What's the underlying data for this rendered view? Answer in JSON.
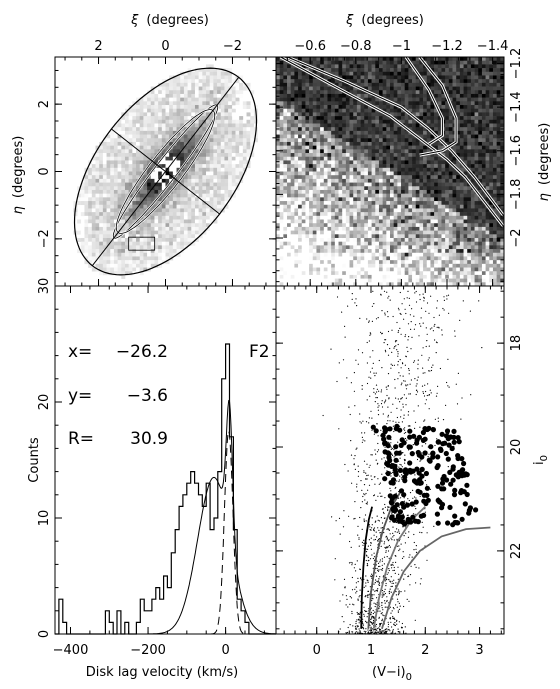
{
  "chart_data": [
    {
      "type": "scatter",
      "panel": "sky-map",
      "x_label_prefix": "ξ",
      "x_label_suffix": "(degrees)",
      "y_label_prefix": "η",
      "y_label_suffix": "(degrees)",
      "xlim": [
        3.3,
        -3.3
      ],
      "ylim": [
        -3.4,
        3.4
      ],
      "xticks": [
        "2",
        "0",
        "−2"
      ],
      "xtick_values": [
        2,
        0,
        -2
      ],
      "yticks": [
        "2",
        "0",
        "−2"
      ],
      "ytick_values": [
        2,
        0,
        -2
      ],
      "outer_ellipse": {
        "center": [
          0,
          0
        ],
        "semi_axes": [
          2.05,
          3.55
        ],
        "pa_deg": 38
      },
      "inner_ellipses": [
        {
          "center": [
            0,
            0
          ],
          "semi_axes": [
            0.32,
            2.5
          ],
          "pa_deg": 38
        },
        {
          "center": [
            0,
            0
          ],
          "semi_axes": [
            0.5,
            2.3
          ],
          "pa_deg": 38
        }
      ]
    },
    {
      "type": "heatmap",
      "panel": "zoom-map",
      "x_label_prefix": "ξ",
      "x_label_suffix": "(degrees)",
      "y_label_prefix": "η",
      "y_label_suffix": "(degrees)",
      "xlim": [
        -0.45,
        -1.45
      ],
      "ylim": [
        -2.22,
        -1.17
      ],
      "xticks": [
        "−0.6",
        "−0.8",
        "−1",
        "−1.2",
        "−1.4"
      ],
      "xtick_values": [
        -0.6,
        -0.8,
        -1,
        -1.2,
        -1.4
      ],
      "yticks": [
        "−1.2",
        "−1.4",
        "−1.6",
        "−1.8",
        "−2"
      ],
      "ytick_values": [
        -1.2,
        -1.4,
        -1.6,
        -1.8,
        -2
      ]
    },
    {
      "type": "bar",
      "panel": "velocity-histogram",
      "xlabel": "Disk lag velocity (km/s)",
      "ylabel": "Counts",
      "xlim": [
        -440,
        130
      ],
      "ylim": [
        0,
        30
      ],
      "xticks": [
        "−400",
        "−200",
        "0"
      ],
      "xtick_values": [
        -400,
        -200,
        0
      ],
      "yticks": [
        "0",
        "10",
        "20",
        "30"
      ],
      "ytick_values": [
        0,
        10,
        20,
        30
      ],
      "field_label": "F2",
      "params": [
        {
          "name": "x=",
          "value": "−26.2"
        },
        {
          "name": "y=",
          "value": "−3.6"
        },
        {
          "name": "R=",
          "value": "30.9"
        }
      ],
      "bin_width": 10,
      "bins_x": [
        -440,
        -430,
        -420,
        -410,
        -400,
        -390,
        -380,
        -370,
        -360,
        -350,
        -340,
        -330,
        -320,
        -310,
        -300,
        -290,
        -280,
        -270,
        -260,
        -250,
        -240,
        -230,
        -220,
        -210,
        -200,
        -190,
        -180,
        -170,
        -160,
        -150,
        -140,
        -130,
        -120,
        -110,
        -100,
        -90,
        -80,
        -70,
        -60,
        -50,
        -40,
        -30,
        -20,
        -10,
        0,
        10,
        20,
        30,
        40,
        50,
        60,
        70,
        80,
        90,
        100,
        110,
        120
      ],
      "counts": [
        0,
        3,
        1,
        0,
        0,
        0,
        0,
        0,
        0,
        0,
        0,
        0,
        0,
        2,
        1,
        0,
        2,
        0,
        1,
        0,
        0,
        1,
        3,
        2,
        2,
        3,
        4,
        3,
        5,
        4,
        7,
        9,
        11,
        12,
        13,
        14,
        13,
        12,
        11,
        13,
        9,
        10,
        14,
        22,
        25,
        17,
        9,
        3,
        2,
        1,
        0,
        0,
        0,
        0,
        0,
        0,
        0
      ],
      "fit_total": {
        "gauss1": {
          "mu": -30,
          "sigma": 42,
          "amp": 13.5
        },
        "gauss2": {
          "mu": 10,
          "sigma": 8,
          "amp": 11.5
        }
      },
      "dashed_component": {
        "mu": 8,
        "sigma": 11,
        "amp": 17.5
      }
    },
    {
      "type": "scatter",
      "panel": "color-magnitude",
      "xlabel_prefix": "(V−i)",
      "xlabel_sub": "0",
      "ylabel": "i",
      "ylabel_sub": "0",
      "xlim": [
        -0.75,
        3.45
      ],
      "ylim": [
        23.6,
        16.9
      ],
      "xticks": [
        "0",
        "1",
        "2",
        "3"
      ],
      "xtick_values": [
        0,
        1,
        2,
        3
      ],
      "yticks": [
        "18",
        "20",
        "22"
      ],
      "ytick_values": [
        18,
        20,
        22
      ],
      "tracks": [
        {
          "color": "#000000",
          "points": [
            [
              0.82,
              23.5
            ],
            [
              0.83,
              22.9
            ],
            [
              0.86,
              22.3
            ],
            [
              0.9,
              21.8
            ],
            [
              0.96,
              21.4
            ],
            [
              1.02,
              21.15
            ]
          ]
        },
        {
          "color": "#555555",
          "points": [
            [
              0.95,
              23.5
            ],
            [
              1.0,
              22.8
            ],
            [
              1.1,
              22.1
            ],
            [
              1.22,
              21.6
            ],
            [
              1.38,
              21.15
            ],
            [
              1.55,
              20.85
            ]
          ]
        },
        {
          "color": "#777777",
          "points": [
            [
              1.05,
              23.5
            ],
            [
              1.15,
              22.9
            ],
            [
              1.3,
              22.3
            ],
            [
              1.5,
              21.8
            ],
            [
              1.75,
              21.4
            ],
            [
              2.0,
              21.15
            ]
          ]
        },
        {
          "color": "#666666",
          "points": [
            [
              1.2,
              23.5
            ],
            [
              1.38,
              22.9
            ],
            [
              1.6,
              22.4
            ],
            [
              1.9,
              22.0
            ],
            [
              2.3,
              21.72
            ],
            [
              2.75,
              21.58
            ],
            [
              3.2,
              21.55
            ]
          ]
        }
      ]
    }
  ]
}
